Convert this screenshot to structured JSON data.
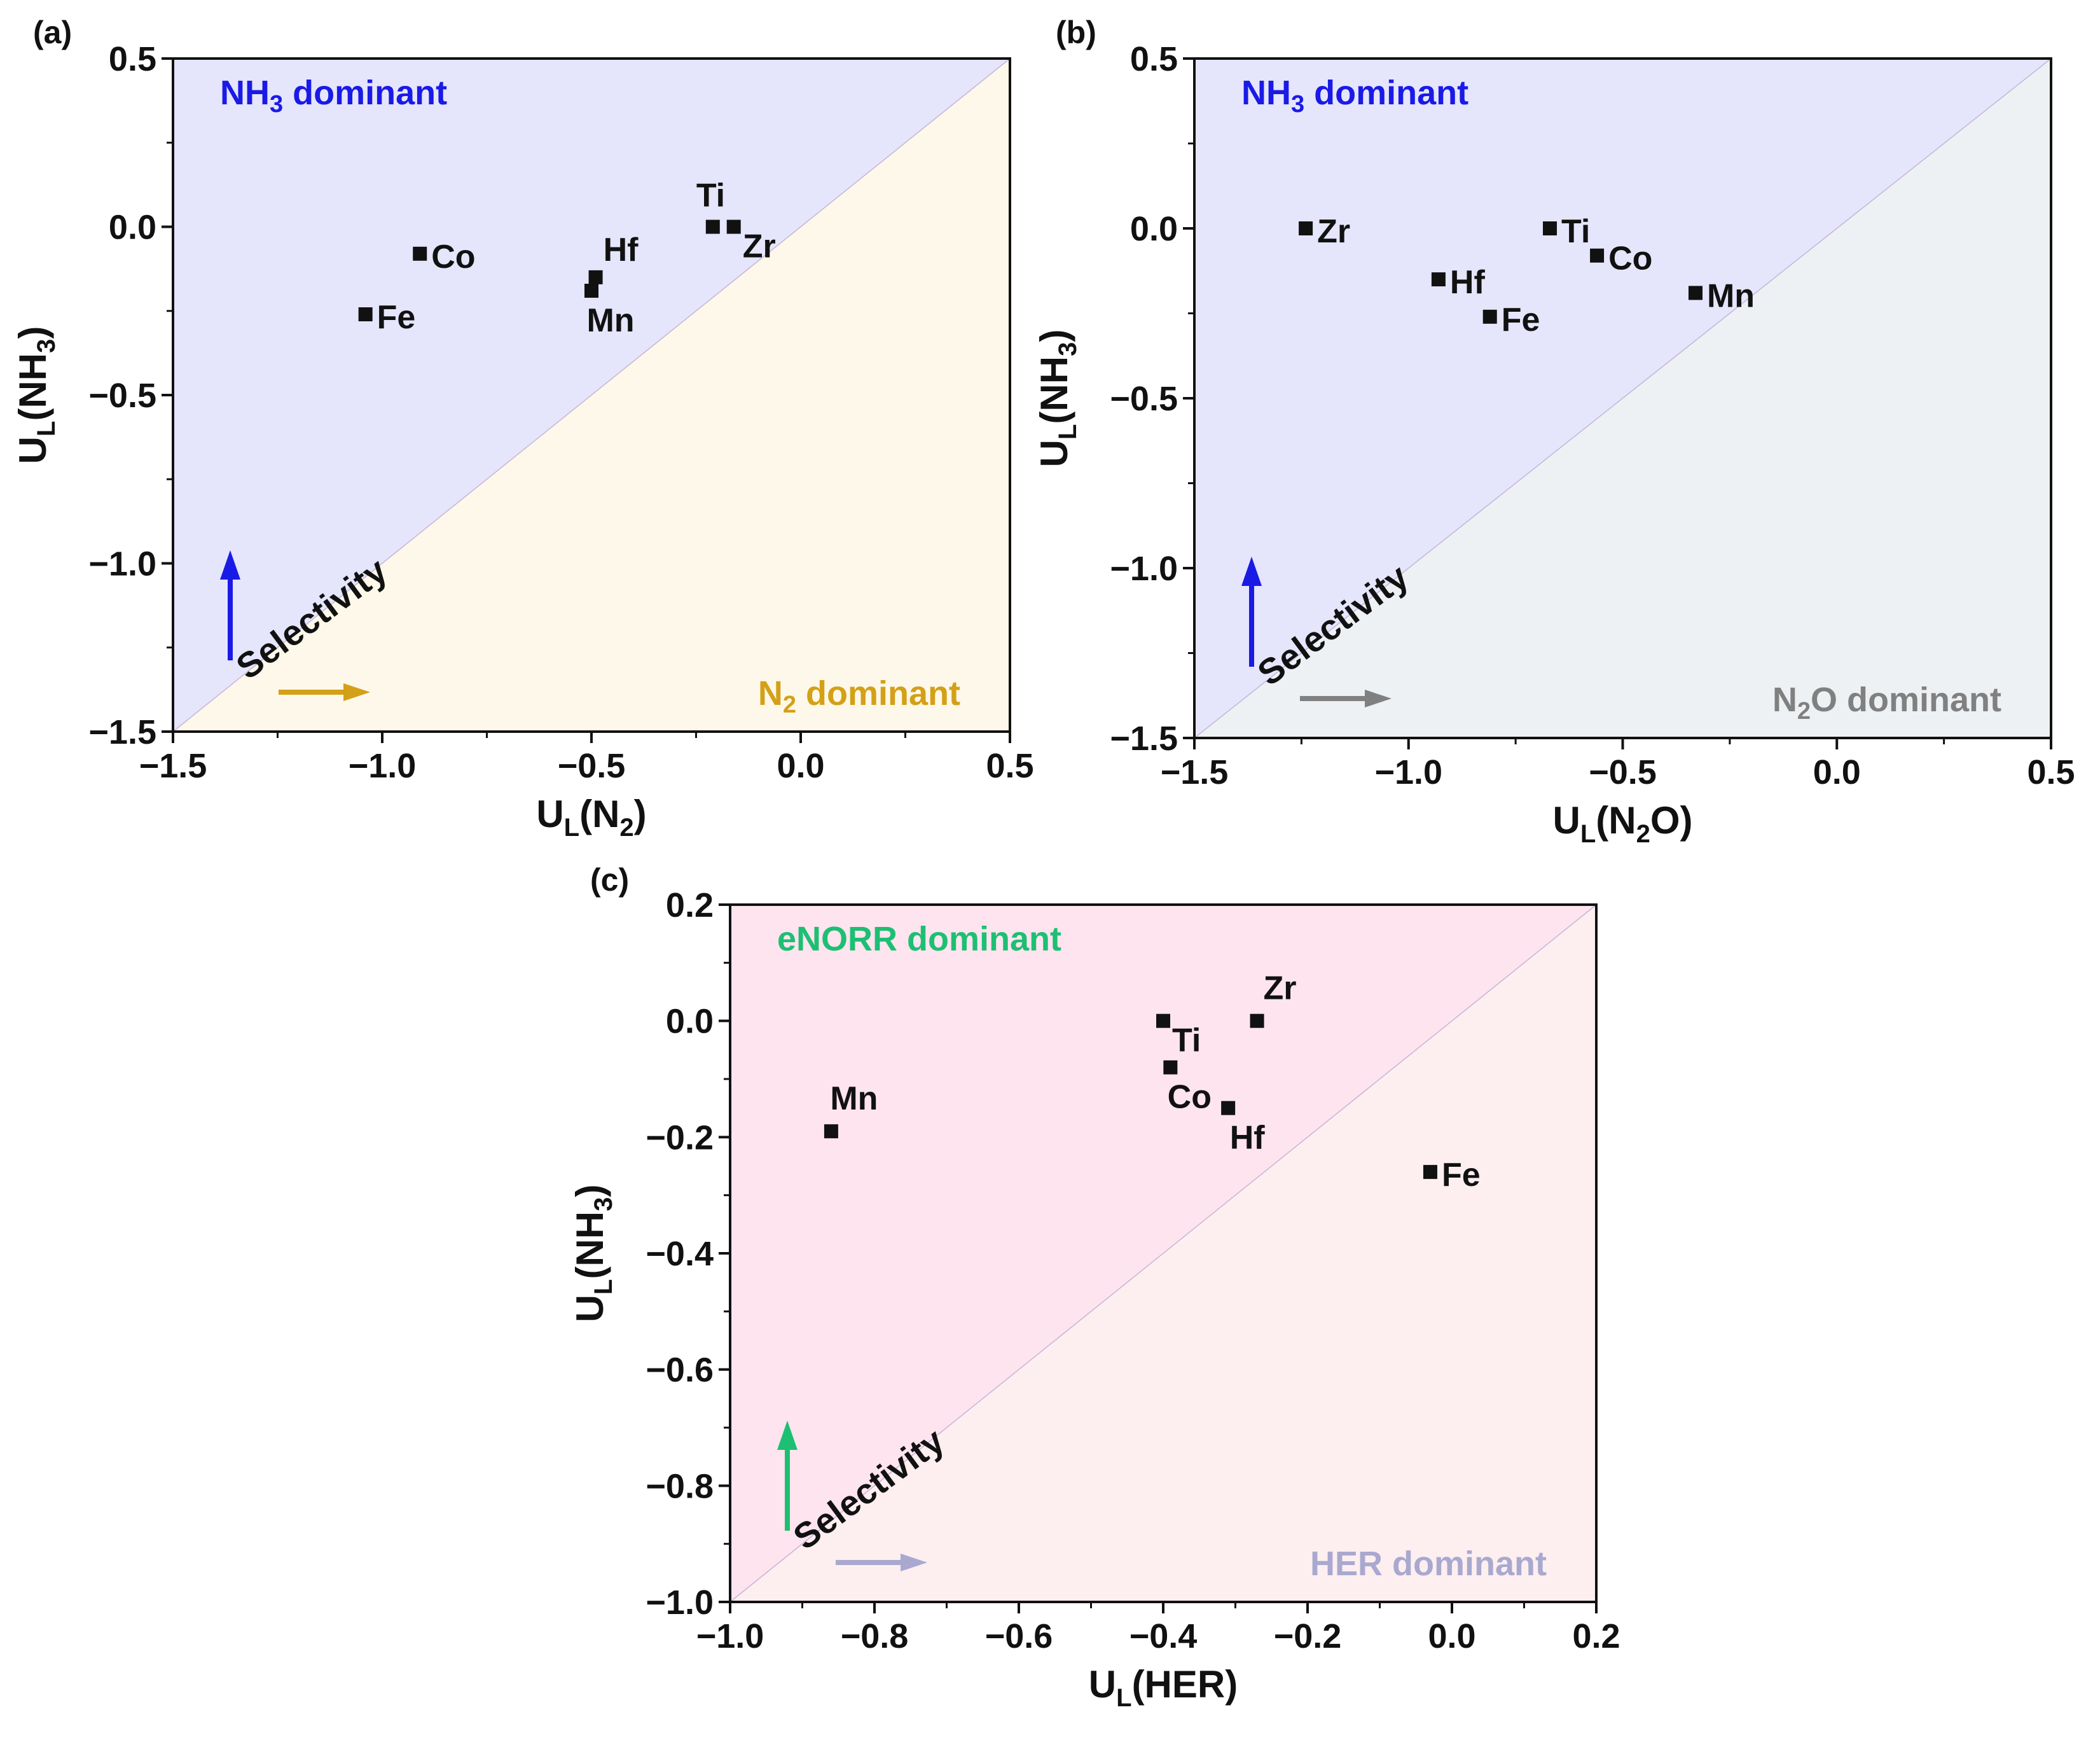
{
  "colors": {
    "nh3_region": "#e5e5fc",
    "n2_region": "#fdf8e9",
    "n2o_region": "#edf1f4",
    "enorr_region": "#fde4ef",
    "her_region": "#fdeef0",
    "nh3_text": "#1a1ae6",
    "n2_text": "#d4a017",
    "n2o_text": "#808080",
    "enorr_text": "#1dbf73",
    "her_text": "#a9a9cf",
    "marker": "#111111",
    "diagonal": "#c8b4d8"
  },
  "chart_data": [
    {
      "panel_label": "(a)",
      "type": "scatter",
      "title": "",
      "xlabel": {
        "main": "U",
        "sub": "L",
        "paren_open": "(N",
        "sub2": "2",
        "paren_close": ")"
      },
      "ylabel": {
        "main": "U",
        "sub": "L",
        "paren_open": "(NH",
        "sub2": "3",
        "paren_close": ")"
      },
      "xlim": [
        -1.5,
        0.5
      ],
      "ylim": [
        -1.5,
        0.5
      ],
      "xticks": [
        -1.5,
        -1.0,
        -0.5,
        0.0,
        0.5
      ],
      "yticks": [
        -1.5,
        -1.0,
        -0.5,
        0.0,
        0.5
      ],
      "xtick_labels": [
        "−1.5",
        "−1.0",
        "−0.5",
        "0.0",
        "0.5"
      ],
      "ytick_labels": [
        "−1.5",
        "−1.0",
        "−0.5",
        "0.0",
        "0.5"
      ],
      "grid": false,
      "upper_region": {
        "name": "NH",
        "sub": "3",
        "suffix": " dominant",
        "color_key": "nh3"
      },
      "lower_region": {
        "name": "N",
        "sub": "2",
        "suffix": " dominant",
        "color_key": "n2"
      },
      "selectivity_text": "Selectivity",
      "up_arrow_color_key": "nh3_text",
      "right_arrow_color_key": "n2_text",
      "points": [
        {
          "label": "Co",
          "x": -0.91,
          "y": -0.08,
          "pos": "right"
        },
        {
          "label": "Fe",
          "x": -1.04,
          "y": -0.26,
          "pos": "right"
        },
        {
          "label": "Hf",
          "x": -0.49,
          "y": -0.15,
          "pos": "above-right"
        },
        {
          "label": "Mn",
          "x": -0.5,
          "y": -0.19,
          "pos": "below"
        },
        {
          "label": "Ti",
          "x": -0.21,
          "y": 0.0,
          "pos": "above-left"
        },
        {
          "label": "Zr",
          "x": -0.16,
          "y": 0.0,
          "pos": "below-right"
        }
      ]
    },
    {
      "panel_label": "(b)",
      "type": "scatter",
      "title": "",
      "xlabel": {
        "main": "U",
        "sub": "L",
        "paren_open": "(N",
        "sub2": "2",
        "paren_close": "O)"
      },
      "ylabel": {
        "main": "U",
        "sub": "L",
        "paren_open": "(NH",
        "sub2": "3",
        "paren_close": ")"
      },
      "xlim": [
        -1.5,
        0.5
      ],
      "ylim": [
        -1.5,
        0.5
      ],
      "xticks": [
        -1.5,
        -1.0,
        -0.5,
        0.0,
        0.5
      ],
      "yticks": [
        -1.5,
        -1.0,
        -0.5,
        0.0,
        0.5
      ],
      "xtick_labels": [
        "−1.5",
        "−1.0",
        "−0.5",
        "0.0",
        "0.5"
      ],
      "ytick_labels": [
        "−1.5",
        "−1.0",
        "−0.5",
        "0.0",
        "0.5"
      ],
      "grid": false,
      "upper_region": {
        "name": "NH",
        "sub": "3",
        "suffix": " dominant",
        "color_key": "nh3"
      },
      "lower_region": {
        "name": "N",
        "sub": "2",
        "suffix": "O dominant",
        "color_key": "n2o"
      },
      "selectivity_text": "Selectivity",
      "up_arrow_color_key": "nh3_text",
      "right_arrow_color_key": "n2o_text",
      "points": [
        {
          "label": "Zr",
          "x": -1.24,
          "y": 0.0,
          "pos": "right"
        },
        {
          "label": "Ti",
          "x": -0.67,
          "y": 0.0,
          "pos": "right"
        },
        {
          "label": "Co",
          "x": -0.56,
          "y": -0.08,
          "pos": "right"
        },
        {
          "label": "Hf",
          "x": -0.93,
          "y": -0.15,
          "pos": "right"
        },
        {
          "label": "Fe",
          "x": -0.81,
          "y": -0.26,
          "pos": "right"
        },
        {
          "label": "Mn",
          "x": -0.33,
          "y": -0.19,
          "pos": "right"
        }
      ]
    },
    {
      "panel_label": "(c)",
      "type": "scatter",
      "title": "",
      "xlabel": {
        "main": "U",
        "sub": "L",
        "paren_open": "(HER",
        "sub2": "",
        "paren_close": ")"
      },
      "ylabel": {
        "main": "U",
        "sub": "L",
        "paren_open": "(NH",
        "sub2": "3",
        "paren_close": ")"
      },
      "xlim": [
        -1.0,
        0.2
      ],
      "ylim": [
        -1.0,
        0.2
      ],
      "xticks": [
        -1.0,
        -0.8,
        -0.6,
        -0.4,
        -0.2,
        0.0,
        0.2
      ],
      "yticks": [
        -1.0,
        -0.8,
        -0.6,
        -0.4,
        -0.2,
        0.0,
        0.2
      ],
      "xtick_labels": [
        "−1.0",
        "−0.8",
        "−0.6",
        "−0.4",
        "−0.2",
        "0.0",
        "0.2"
      ],
      "ytick_labels": [
        "−1.0",
        "−0.8",
        "−0.6",
        "−0.4",
        "−0.2",
        "0.0",
        "0.2"
      ],
      "grid": false,
      "upper_region": {
        "name": "eNORR",
        "sub": "",
        "suffix": " dominant",
        "color_key": "enorr"
      },
      "lower_region": {
        "name": "HER",
        "sub": "",
        "suffix": " dominant",
        "color_key": "her"
      },
      "selectivity_text": "Selectivity",
      "up_arrow_color_key": "enorr_text",
      "right_arrow_color_key": "her_text",
      "points": [
        {
          "label": "Mn",
          "x": -0.86,
          "y": -0.19,
          "pos": "above"
        },
        {
          "label": "Ti",
          "x": -0.4,
          "y": 0.0,
          "pos": "below-right"
        },
        {
          "label": "Co",
          "x": -0.39,
          "y": -0.08,
          "pos": "below"
        },
        {
          "label": "Zr",
          "x": -0.27,
          "y": 0.0,
          "pos": "above"
        },
        {
          "label": "Hf",
          "x": -0.31,
          "y": -0.15,
          "pos": "below"
        },
        {
          "label": "Fe",
          "x": -0.03,
          "y": -0.26,
          "pos": "right"
        }
      ]
    }
  ]
}
